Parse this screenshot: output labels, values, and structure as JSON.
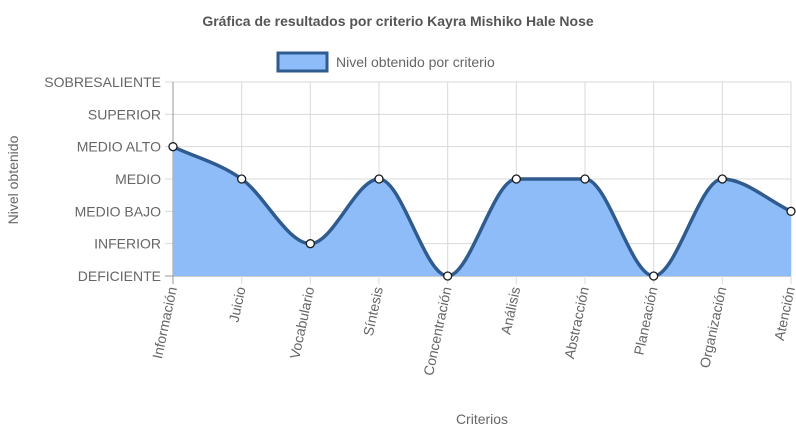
{
  "chart_data": {
    "type": "area",
    "title": "Gráfica de resultados por criterio Kayra Mishiko Hale Nose",
    "xlabel": "Criterios",
    "ylabel": "Nivel obtenido",
    "legend": {
      "position": "top",
      "label": "Nivel obtenido por criterio"
    },
    "y_levels": [
      "DEFICIENTE",
      "INFERIOR",
      "MEDIO BAJO",
      "MEDIO",
      "MEDIO ALTO",
      "SUPERIOR",
      "SOBRESALIENTE"
    ],
    "ylim": [
      0,
      6
    ],
    "grid": true,
    "categories": [
      "Información",
      "Juicio",
      "Vocabulario",
      "Síntesis",
      "Concentración",
      "Análisis",
      "Abstracción",
      "Planeación",
      "Organización",
      "Atención"
    ],
    "series": [
      {
        "name": "Nivel obtenido por criterio",
        "values": [
          4,
          3,
          1,
          3,
          0,
          3,
          3,
          0,
          3,
          2
        ],
        "levels": [
          "MEDIO ALTO",
          "MEDIO",
          "INFERIOR",
          "MEDIO",
          "DEFICIENTE",
          "MEDIO",
          "MEDIO",
          "DEFICIENTE",
          "MEDIO",
          "MEDIO BAJO"
        ]
      }
    ],
    "colors": {
      "fill": "#8dbcf8",
      "line": "#2f5b8f",
      "point_fill": "#ffffff",
      "point_stroke": "#1a1a1a",
      "grid": "#d9d9d9",
      "axis": "#999999",
      "text": "#666666",
      "title": "#555555"
    }
  }
}
